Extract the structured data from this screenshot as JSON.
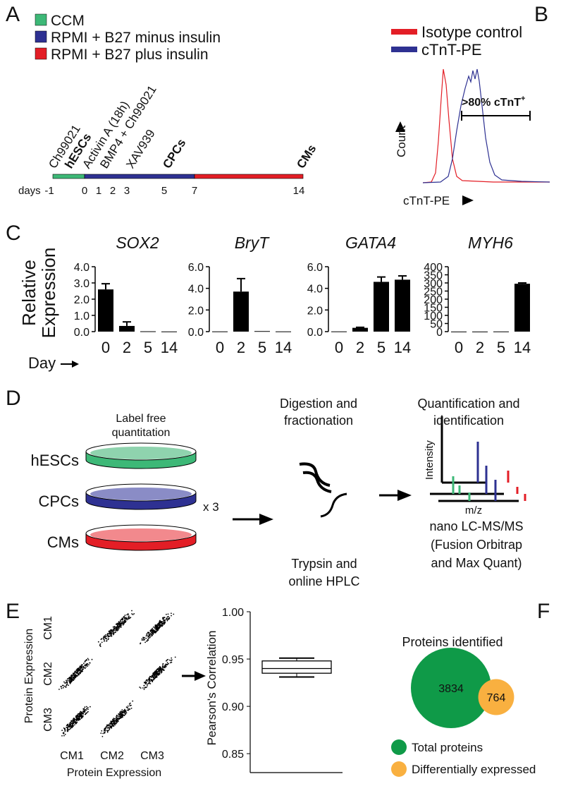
{
  "panels": {
    "A": {
      "label": "A",
      "legend": [
        {
          "name": "CCM",
          "color": "#3db877"
        },
        {
          "name": "RPMI + B27 minus insulin",
          "color": "#2e3192"
        },
        {
          "name": "RPMI + B27 plus insulin",
          "color": "#e31e26"
        }
      ],
      "days_label": "days",
      "days": [
        "-1",
        "0",
        "1",
        "2",
        "3",
        "5",
        "7",
        "14"
      ],
      "events": [
        "Ch99021",
        "Activin A (18h)",
        "BMP4 + Ch99021",
        "XAV939"
      ],
      "stages": [
        "hESCs",
        "CPCs",
        "CMs"
      ],
      "stage_color": "#f7a238"
    },
    "B": {
      "label": "B",
      "legend": [
        {
          "name": "Isotype control",
          "color": "#e31e26"
        },
        {
          "name": "cTnT-PE",
          "color": "#2e3192"
        }
      ],
      "gate": ">80% cTnT",
      "gate_sup": "+",
      "y_label": "Count",
      "x_label": "cTnT-PE"
    },
    "C": {
      "label": "C",
      "y_label": [
        "Relative",
        "Expression"
      ],
      "x_label": "Day"
    },
    "D": {
      "label": "D",
      "title": [
        "Label free",
        "quantitation"
      ],
      "samples": [
        "hESCs",
        "CPCs",
        "CMs"
      ],
      "replicates": "x 3",
      "step2": [
        "Digestion and",
        "fractionation"
      ],
      "step2_note": [
        "Trypsin and",
        "online HPLC"
      ],
      "step3": [
        "Quantification and",
        "identification"
      ],
      "ms_y": "Intensity",
      "ms_x": "m/z",
      "instrument": [
        "nano LC-MS/MS",
        "(Fusion Orbitrap",
        "and Max Quant)"
      ]
    },
    "E": {
      "label": "E",
      "row_labels": [
        "CM1",
        "CM2",
        "CM3"
      ],
      "col_labels": [
        "CM1",
        "CM2",
        "CM3"
      ],
      "x_label": "Protein Expression",
      "y_label": "Protein Expression"
    },
    "F": {
      "label": "F"
    }
  },
  "chart_data": [
    {
      "type": "bar",
      "title": "SOX2",
      "categories": [
        "0",
        "2",
        "5",
        "14"
      ],
      "values": [
        2.6,
        0.35,
        0.02,
        0.01
      ],
      "errors": [
        0.35,
        0.25,
        0,
        0
      ],
      "color": "#000000",
      "ylim": [
        0,
        4
      ],
      "yticks": [
        {
          "value": 0,
          "label": "0.0"
        },
        {
          "value": 1,
          "label": "1.0"
        },
        {
          "value": 2,
          "label": "2.0"
        },
        {
          "value": 3,
          "label": "3.0"
        },
        {
          "value": 4,
          "label": "4.0"
        }
      ]
    },
    {
      "type": "bar",
      "title": "BryT",
      "categories": [
        "0",
        "2",
        "5",
        "14"
      ],
      "values": [
        0.02,
        3.7,
        0.05,
        0.02
      ],
      "errors": [
        0,
        1.2,
        0,
        0
      ],
      "color": "#000000",
      "ylim": [
        0,
        6
      ],
      "yticks": [
        {
          "value": 0,
          "label": "0.0"
        },
        {
          "value": 2,
          "label": "2.0"
        },
        {
          "value": 4,
          "label": "4.0"
        },
        {
          "value": 6,
          "label": "6.0"
        }
      ]
    },
    {
      "type": "bar",
      "title": "GATA4",
      "categories": [
        "0",
        "2",
        "5",
        "14"
      ],
      "values": [
        0.02,
        0.35,
        4.6,
        4.8
      ],
      "errors": [
        0,
        0.05,
        0.45,
        0.35
      ],
      "color": "#000000",
      "ylim": [
        0,
        6
      ],
      "yticks": [
        {
          "value": 0,
          "label": "0.0"
        },
        {
          "value": 2,
          "label": "2.0"
        },
        {
          "value": 4,
          "label": "4.0"
        },
        {
          "value": 6,
          "label": "6.0"
        }
      ]
    },
    {
      "type": "bar",
      "title": "MYH6",
      "categories": [
        "0",
        "2",
        "5",
        "14"
      ],
      "values": [
        0.5,
        0.5,
        1,
        295
      ],
      "errors": [
        0,
        0,
        0,
        5
      ],
      "color": "#000000",
      "ylim": [
        0,
        400
      ],
      "yticks": [
        0,
        50,
        100,
        150,
        200,
        250,
        300,
        350,
        400
      ]
    },
    {
      "type": "box",
      "y_label": "Pearson's Correlation",
      "ylim": [
        0.83,
        1.0
      ],
      "yticks": [
        {
          "value": 0.85,
          "label": "0.85"
        },
        {
          "value": 0.9,
          "label": "0.90"
        },
        {
          "value": 0.95,
          "label": "0.95"
        },
        {
          "value": 1,
          "label": "1.00"
        }
      ],
      "whisker_low": 0.931,
      "q1": 0.935,
      "median": 0.94,
      "q3": 0.948,
      "whisker_high": 0.951
    },
    {
      "type": "bubble",
      "title": "Proteins identified",
      "categories": [
        "Total proteins",
        "Differentially expressed"
      ],
      "values": [
        3834,
        764
      ],
      "colors": [
        "#0f9a48",
        "#f9b040"
      ]
    }
  ]
}
